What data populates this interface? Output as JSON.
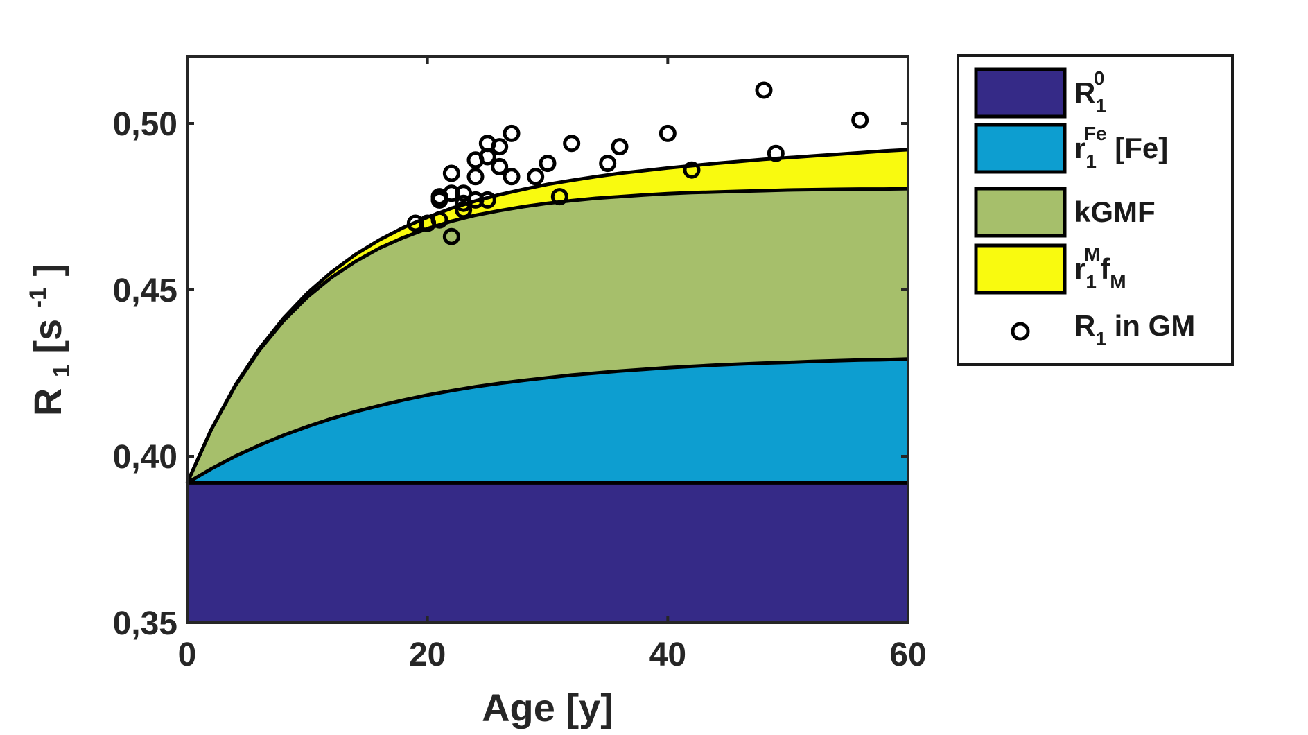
{
  "chart_data": {
    "type": "area",
    "title": "",
    "xlabel": "Age [y]",
    "ylabel": {
      "base": "R",
      "sub": "1",
      "bracket_open": " [s",
      "sup": "-1",
      "bracket_close": "]"
    },
    "xlim": [
      0,
      60
    ],
    "ylim": [
      0.35,
      0.52
    ],
    "x_ticks": [
      0,
      20,
      40,
      60
    ],
    "x_tick_labels": [
      "0",
      "20",
      "40",
      "60"
    ],
    "y_ticks": [
      0.35,
      0.4,
      0.45,
      0.5
    ],
    "y_tick_labels": [
      "0,35",
      "0,40",
      "0,45",
      "0,50"
    ],
    "grid": false,
    "legend_position": "outside-right-top",
    "model": {
      "x": [
        0,
        2,
        4,
        6,
        8,
        10,
        12,
        14,
        16,
        18,
        20,
        22,
        24,
        26,
        28,
        30,
        32,
        34,
        36,
        38,
        40,
        42,
        44,
        46,
        48,
        50,
        52,
        54,
        56,
        58,
        60
      ],
      "baseline": 0.35,
      "R1_0": 0.392,
      "fe_top": [
        0.392,
        0.3962,
        0.4,
        0.4033,
        0.4063,
        0.4089,
        0.4113,
        0.4134,
        0.4152,
        0.4169,
        0.4184,
        0.4197,
        0.4209,
        0.4219,
        0.4228,
        0.4236,
        0.4244,
        0.425,
        0.4256,
        0.4261,
        0.4266,
        0.427,
        0.4274,
        0.4277,
        0.428,
        0.4282,
        0.4285,
        0.4287,
        0.4289,
        0.429,
        0.4292
      ],
      "kgmf_top": [
        0.392,
        0.408,
        0.4211,
        0.4318,
        0.4406,
        0.4478,
        0.4537,
        0.4585,
        0.4625,
        0.4657,
        0.4684,
        0.4706,
        0.4724,
        0.4738,
        0.475,
        0.476,
        0.4768,
        0.4775,
        0.478,
        0.4785,
        0.4789,
        0.4792,
        0.4794,
        0.4796,
        0.4798,
        0.48,
        0.4801,
        0.4802,
        0.4803,
        0.4803,
        0.4804
      ],
      "myelin_top": [
        0.392,
        0.408,
        0.4213,
        0.4323,
        0.4414,
        0.449,
        0.4553,
        0.4606,
        0.465,
        0.4687,
        0.4718,
        0.4745,
        0.4767,
        0.4786,
        0.4802,
        0.4817,
        0.4829,
        0.484,
        0.485,
        0.4858,
        0.4866,
        0.4873,
        0.488,
        0.4886,
        0.4892,
        0.4897,
        0.4902,
        0.4907,
        0.4912,
        0.4917,
        0.4921
      ]
    },
    "series": [
      {
        "name": "R1_0",
        "label_base": "R",
        "label_sub": "1",
        "label_sup": "0",
        "label_rest": "",
        "color": "#352a87",
        "kind": "area"
      },
      {
        "name": "r1Fe_Fe",
        "label_base": "r",
        "label_sub": "1",
        "label_sup": "Fe",
        "label_rest": " [Fe]",
        "color": "#0d9ed0",
        "kind": "area"
      },
      {
        "name": "kGMF",
        "label_base": "kGMF",
        "label_sub": "",
        "label_sup": "",
        "label_rest": "",
        "color": "#a6bf6b",
        "kind": "area"
      },
      {
        "name": "r1M_fM",
        "label_base": "r",
        "label_sub": "1",
        "label_sup": "M",
        "label_rest": "f",
        "label_sub2": "M",
        "color": "#f9fa0f",
        "kind": "area"
      },
      {
        "name": "R1_in_GM",
        "label_base": "R",
        "label_sub": "1",
        "label_sup": "",
        "label_rest": " in GM",
        "color": "#000000",
        "kind": "scatter"
      }
    ],
    "scatter": {
      "name": "R1 in GM",
      "x": [
        19,
        20,
        21,
        21,
        21,
        22,
        22,
        22,
        23,
        23,
        23,
        24,
        24,
        24,
        25,
        25,
        25,
        26,
        26,
        27,
        27,
        29,
        30,
        31,
        32,
        35,
        36,
        40,
        42,
        48,
        49,
        56
      ],
      "y": [
        0.47,
        0.47,
        0.471,
        0.478,
        0.477,
        0.466,
        0.485,
        0.479,
        0.474,
        0.476,
        0.479,
        0.484,
        0.489,
        0.477,
        0.494,
        0.49,
        0.477,
        0.493,
        0.487,
        0.497,
        0.484,
        0.484,
        0.488,
        0.478,
        0.494,
        0.488,
        0.493,
        0.497,
        0.486,
        0.51,
        0.491,
        0.501
      ]
    }
  }
}
